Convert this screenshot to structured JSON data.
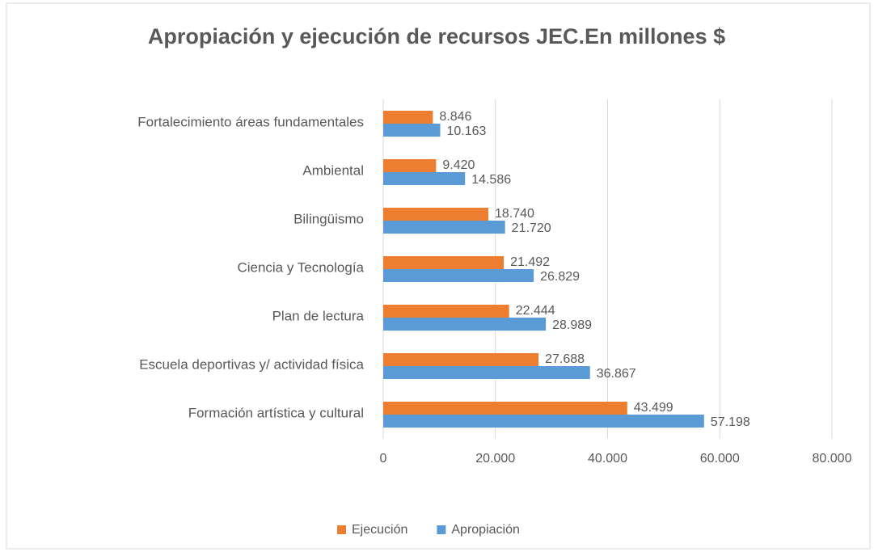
{
  "chart_data": {
    "type": "bar",
    "orientation": "horizontal",
    "title": "Apropiación y ejecución de recursos JEC.En millones $",
    "categories": [
      "Fortalecimiento áreas fundamentales",
      "Ambiental",
      "Bilingüismo",
      "Ciencia y Tecnología",
      "Plan de lectura",
      "Escuela deportivas y/ actividad física",
      "Formación artística y cultural"
    ],
    "series": [
      {
        "name": "Ejecución",
        "color": "#ed7d31",
        "values": [
          8846,
          9420,
          18740,
          21492,
          22444,
          27688,
          43499
        ],
        "value_labels": [
          "8.846",
          "9.420",
          "18.740",
          "21.492",
          "22.444",
          "27.688",
          "43.499"
        ]
      },
      {
        "name": "Apropiación",
        "color": "#5b9bd5",
        "values": [
          10163,
          14586,
          21720,
          26829,
          28989,
          36867,
          57198
        ],
        "value_labels": [
          "10.163",
          "14.586",
          "21.720",
          "26.829",
          "28.989",
          "36.867",
          "57.198"
        ]
      }
    ],
    "xlim": [
      0,
      80000
    ],
    "xticks": [
      0,
      {
        "value": 20000,
        "label": "20.000"
      },
      {
        "value": 40000,
        "label": "40.000"
      },
      {
        "value": 60000,
        "label": "60.000"
      },
      {
        "value": 80000,
        "label": "80.000"
      }
    ],
    "grid": true,
    "legend": "bottom"
  }
}
